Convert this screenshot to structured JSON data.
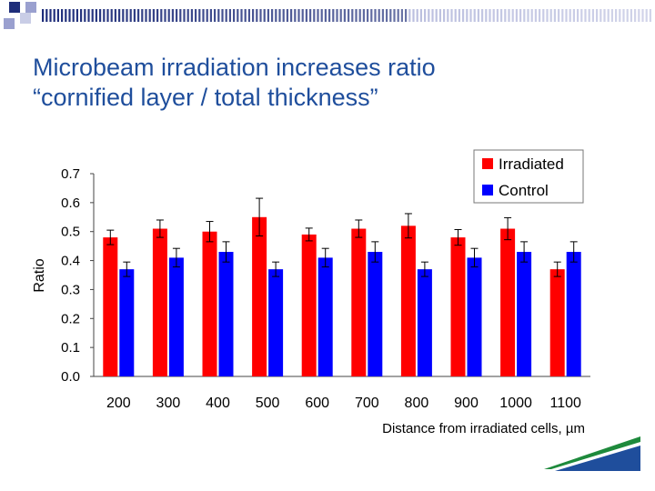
{
  "slide": {
    "title_line1": "Microbeam irradiation increases ratio",
    "title_line2": "“cornified layer / total thickness”"
  },
  "colors": {
    "title": "#1f4e9c",
    "irradiated": "#ff0000",
    "control": "#0000ff",
    "deco_dark": "#1f2e7a",
    "deco_light": "#9aa0cf",
    "logo_green": "#1e8a3c",
    "logo_blue": "#1f4e9c"
  },
  "chart_data": {
    "type": "bar",
    "title": "",
    "xlabel": "Distance from irradiated cells, µm",
    "ylabel": "Ratio",
    "ylim": [
      0,
      0.7
    ],
    "yticks": [
      "0.0",
      "0.1",
      "0.2",
      "0.3",
      "0.4",
      "0.5",
      "0.6",
      "0.7"
    ],
    "categories": [
      "200",
      "300",
      "400",
      "500",
      "600",
      "700",
      "800",
      "900",
      "1000",
      "1100"
    ],
    "legend_position": "top-right",
    "series": [
      {
        "name": "Irradiated",
        "values": [
          0.48,
          0.51,
          0.5,
          0.55,
          0.49,
          0.51,
          0.52,
          0.48,
          0.51,
          0.37
        ],
        "errors": [
          0.025,
          0.03,
          0.035,
          0.065,
          0.022,
          0.03,
          0.042,
          0.027,
          0.038,
          0.025
        ]
      },
      {
        "name": "Control",
        "values": [
          0.37,
          0.41,
          0.43,
          0.37,
          0.41,
          0.43,
          0.37,
          0.41,
          0.43,
          0.43
        ],
        "errors": [
          0.025,
          0.032,
          0.035,
          0.025,
          0.032,
          0.035,
          0.025,
          0.032,
          0.035,
          0.035
        ]
      }
    ]
  }
}
